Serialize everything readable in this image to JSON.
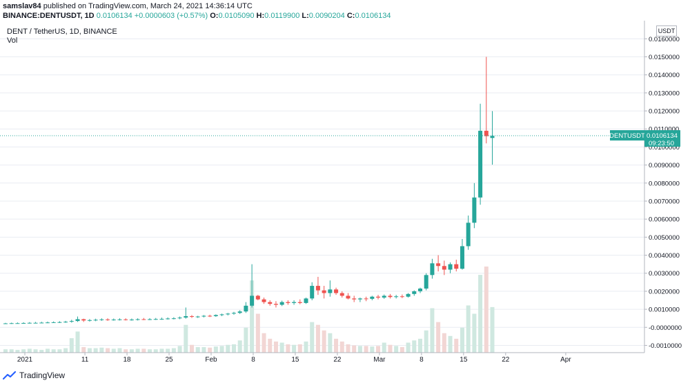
{
  "header": {
    "user": "samslav84",
    "published": " published on TradingView.com, March 24, 2021 14:36:14 UTC",
    "symbol": "BINANCE:DENTUSDT, 1D",
    "last": "0.0106134",
    "change": "+0.0000603 (+0.57%)",
    "o_label": "O:",
    "o_value": "0.0105090",
    "h_label": "H:",
    "h_value": "0.0119900",
    "l_label": "L:",
    "l_value": "0.0090204",
    "c_label": "C:",
    "c_value": "0.0106134"
  },
  "pane": {
    "title": "DENT / TetherUS, 1D, BINANCE",
    "vol_label": "Vol",
    "unit": "USDT",
    "price_tag": "DENTUSDT",
    "price_tag_value": "0.0106134",
    "countdown": "09:23:50"
  },
  "brand": {
    "name": "TradingView"
  },
  "colors": {
    "up": "#26a69a",
    "down": "#ef5350",
    "vol_up": "#cfe8e0",
    "vol_down": "#f2d6d4",
    "grid": "#e9ecf2"
  },
  "chart_data": {
    "type": "candlestick",
    "title": "DENT / TetherUS, 1D, BINANCE",
    "ylabel": "USDT",
    "y_ticks": [
      "0.0160000",
      "0.0150000",
      "0.0140000",
      "0.0130000",
      "0.0120000",
      "0.0110000",
      "0.0100000",
      "0.0090000",
      "0.0080000",
      "0.0070000",
      "0.0060000",
      "0.0050000",
      "0.0040000",
      "0.0030000",
      "0.0020000",
      "0.0010000",
      "-0.0000000",
      "-0.0010000"
    ],
    "x_ticks": [
      "2021",
      "11",
      "18",
      "25",
      "Feb",
      "8",
      "15",
      "22",
      "Mar",
      "8",
      "15",
      "22",
      "Apr"
    ],
    "ylim": [
      -0.00125,
      0.0167
    ],
    "candles": [
      {
        "o": 0.00021,
        "h": 0.00025,
        "l": 0.00018,
        "c": 0.00022,
        "v": 6
      },
      {
        "o": 0.00022,
        "h": 0.00026,
        "l": 0.00019,
        "c": 0.00023,
        "v": 6
      },
      {
        "o": 0.00023,
        "h": 0.00027,
        "l": 0.0002,
        "c": 0.00023,
        "v": 5
      },
      {
        "o": 0.00023,
        "h": 0.00028,
        "l": 0.0002,
        "c": 0.00024,
        "v": 6
      },
      {
        "o": 0.00024,
        "h": 0.00029,
        "l": 0.00021,
        "c": 0.00025,
        "v": 7
      },
      {
        "o": 0.00025,
        "h": 0.0003,
        "l": 0.00022,
        "c": 0.00025,
        "v": 6
      },
      {
        "o": 0.00025,
        "h": 0.00031,
        "l": 0.00022,
        "c": 0.00026,
        "v": 5
      },
      {
        "o": 0.00026,
        "h": 0.00032,
        "l": 0.00023,
        "c": 0.00027,
        "v": 7
      },
      {
        "o": 0.00027,
        "h": 0.00033,
        "l": 0.00024,
        "c": 0.00028,
        "v": 6
      },
      {
        "o": 0.00028,
        "h": 0.00034,
        "l": 0.00024,
        "c": 0.00029,
        "v": 6
      },
      {
        "o": 0.00029,
        "h": 0.00036,
        "l": 0.00025,
        "c": 0.00031,
        "v": 8
      },
      {
        "o": 0.00031,
        "h": 0.00042,
        "l": 0.00026,
        "c": 0.00035,
        "v": 26
      },
      {
        "o": 0.00035,
        "h": 0.0006,
        "l": 0.0003,
        "c": 0.00045,
        "v": 38
      },
      {
        "o": 0.00045,
        "h": 0.00048,
        "l": 0.0003,
        "c": 0.00038,
        "v": 10
      },
      {
        "o": 0.00038,
        "h": 0.00046,
        "l": 0.00032,
        "c": 0.0004,
        "v": 8
      },
      {
        "o": 0.0004,
        "h": 0.00048,
        "l": 0.00034,
        "c": 0.00042,
        "v": 8
      },
      {
        "o": 0.00042,
        "h": 0.0005,
        "l": 0.00036,
        "c": 0.00044,
        "v": 9
      },
      {
        "o": 0.00044,
        "h": 0.0005,
        "l": 0.00036,
        "c": 0.00041,
        "v": 8
      },
      {
        "o": 0.00041,
        "h": 0.00049,
        "l": 0.00037,
        "c": 0.00043,
        "v": 7
      },
      {
        "o": 0.00043,
        "h": 0.0005,
        "l": 0.00038,
        "c": 0.00044,
        "v": 8
      },
      {
        "o": 0.00044,
        "h": 0.0005,
        "l": 0.00038,
        "c": 0.00042,
        "v": 6
      },
      {
        "o": 0.00042,
        "h": 0.00049,
        "l": 0.00037,
        "c": 0.00043,
        "v": 6
      },
      {
        "o": 0.00043,
        "h": 0.0005,
        "l": 0.00038,
        "c": 0.00045,
        "v": 7
      },
      {
        "o": 0.00045,
        "h": 0.00052,
        "l": 0.0004,
        "c": 0.00044,
        "v": 7
      },
      {
        "o": 0.00044,
        "h": 0.00051,
        "l": 0.0004,
        "c": 0.00045,
        "v": 6
      },
      {
        "o": 0.00045,
        "h": 0.00052,
        "l": 0.00041,
        "c": 0.00046,
        "v": 6
      },
      {
        "o": 0.00046,
        "h": 0.00054,
        "l": 0.00042,
        "c": 0.00047,
        "v": 7
      },
      {
        "o": 0.00047,
        "h": 0.00055,
        "l": 0.00043,
        "c": 0.00049,
        "v": 7
      },
      {
        "o": 0.00049,
        "h": 0.00056,
        "l": 0.00044,
        "c": 0.0005,
        "v": 8
      },
      {
        "o": 0.0005,
        "h": 0.0006,
        "l": 0.00045,
        "c": 0.00054,
        "v": 12
      },
      {
        "o": 0.00054,
        "h": 0.0011,
        "l": 0.00048,
        "c": 0.00062,
        "v": 50
      },
      {
        "o": 0.00062,
        "h": 0.00068,
        "l": 0.00052,
        "c": 0.00058,
        "v": 14
      },
      {
        "o": 0.00058,
        "h": 0.00064,
        "l": 0.00052,
        "c": 0.0006,
        "v": 10
      },
      {
        "o": 0.0006,
        "h": 0.00068,
        "l": 0.00055,
        "c": 0.00064,
        "v": 10
      },
      {
        "o": 0.00064,
        "h": 0.0007,
        "l": 0.00057,
        "c": 0.00062,
        "v": 9
      },
      {
        "o": 0.00062,
        "h": 0.00072,
        "l": 0.00058,
        "c": 0.00068,
        "v": 11
      },
      {
        "o": 0.00068,
        "h": 0.00076,
        "l": 0.00062,
        "c": 0.00072,
        "v": 12
      },
      {
        "o": 0.00072,
        "h": 0.0008,
        "l": 0.00066,
        "c": 0.00076,
        "v": 14
      },
      {
        "o": 0.00076,
        "h": 0.00086,
        "l": 0.0007,
        "c": 0.0008,
        "v": 15
      },
      {
        "o": 0.0008,
        "h": 0.00095,
        "l": 0.00074,
        "c": 0.00088,
        "v": 22
      },
      {
        "o": 0.00088,
        "h": 0.0014,
        "l": 0.0008,
        "c": 0.0012,
        "v": 45
      },
      {
        "o": 0.0012,
        "h": 0.0035,
        "l": 0.0011,
        "c": 0.00175,
        "v": 130
      },
      {
        "o": 0.00175,
        "h": 0.0018,
        "l": 0.0015,
        "c": 0.00155,
        "v": 70
      },
      {
        "o": 0.00155,
        "h": 0.00165,
        "l": 0.0013,
        "c": 0.0014,
        "v": 35
      },
      {
        "o": 0.0014,
        "h": 0.0015,
        "l": 0.0012,
        "c": 0.0013,
        "v": 25
      },
      {
        "o": 0.0013,
        "h": 0.00145,
        "l": 0.0011,
        "c": 0.00125,
        "v": 20
      },
      {
        "o": 0.00125,
        "h": 0.00148,
        "l": 0.00118,
        "c": 0.0014,
        "v": 18
      },
      {
        "o": 0.0014,
        "h": 0.0015,
        "l": 0.00125,
        "c": 0.00135,
        "v": 15
      },
      {
        "o": 0.00135,
        "h": 0.0015,
        "l": 0.00125,
        "c": 0.0014,
        "v": 14
      },
      {
        "o": 0.0014,
        "h": 0.00155,
        "l": 0.00128,
        "c": 0.00135,
        "v": 15
      },
      {
        "o": 0.00135,
        "h": 0.00165,
        "l": 0.0013,
        "c": 0.0016,
        "v": 20
      },
      {
        "o": 0.0016,
        "h": 0.0025,
        "l": 0.0015,
        "c": 0.0023,
        "v": 55
      },
      {
        "o": 0.0023,
        "h": 0.0028,
        "l": 0.0018,
        "c": 0.00205,
        "v": 50
      },
      {
        "o": 0.00205,
        "h": 0.0023,
        "l": 0.0016,
        "c": 0.0019,
        "v": 40
      },
      {
        "o": 0.0019,
        "h": 0.0026,
        "l": 0.0017,
        "c": 0.0021,
        "v": 35
      },
      {
        "o": 0.0021,
        "h": 0.0022,
        "l": 0.0018,
        "c": 0.0019,
        "v": 25
      },
      {
        "o": 0.0019,
        "h": 0.002,
        "l": 0.00165,
        "c": 0.00175,
        "v": 20
      },
      {
        "o": 0.00175,
        "h": 0.0019,
        "l": 0.00155,
        "c": 0.0016,
        "v": 15
      },
      {
        "o": 0.0016,
        "h": 0.00175,
        "l": 0.0014,
        "c": 0.00155,
        "v": 13
      },
      {
        "o": 0.00155,
        "h": 0.00165,
        "l": 0.0014,
        "c": 0.0016,
        "v": 12
      },
      {
        "o": 0.0016,
        "h": 0.0017,
        "l": 0.00145,
        "c": 0.00158,
        "v": 12
      },
      {
        "o": 0.00158,
        "h": 0.00175,
        "l": 0.0015,
        "c": 0.0017,
        "v": 11
      },
      {
        "o": 0.0017,
        "h": 0.0018,
        "l": 0.00155,
        "c": 0.00165,
        "v": 12
      },
      {
        "o": 0.00165,
        "h": 0.00182,
        "l": 0.00158,
        "c": 0.00175,
        "v": 18
      },
      {
        "o": 0.00175,
        "h": 0.00185,
        "l": 0.0016,
        "c": 0.00168,
        "v": 14
      },
      {
        "o": 0.00168,
        "h": 0.0018,
        "l": 0.0016,
        "c": 0.00172,
        "v": 12
      },
      {
        "o": 0.00172,
        "h": 0.00182,
        "l": 0.00162,
        "c": 0.0017,
        "v": 10
      },
      {
        "o": 0.0017,
        "h": 0.0019,
        "l": 0.00165,
        "c": 0.00185,
        "v": 18
      },
      {
        "o": 0.00185,
        "h": 0.00205,
        "l": 0.00175,
        "c": 0.002,
        "v": 22
      },
      {
        "o": 0.002,
        "h": 0.0022,
        "l": 0.0019,
        "c": 0.00215,
        "v": 25
      },
      {
        "o": 0.00215,
        "h": 0.003,
        "l": 0.00205,
        "c": 0.0029,
        "v": 40
      },
      {
        "o": 0.0029,
        "h": 0.0038,
        "l": 0.0027,
        "c": 0.00355,
        "v": 80
      },
      {
        "o": 0.00355,
        "h": 0.004,
        "l": 0.0031,
        "c": 0.0034,
        "v": 55
      },
      {
        "o": 0.0034,
        "h": 0.0037,
        "l": 0.0029,
        "c": 0.0032,
        "v": 35
      },
      {
        "o": 0.0032,
        "h": 0.0036,
        "l": 0.003,
        "c": 0.0035,
        "v": 30
      },
      {
        "o": 0.0035,
        "h": 0.00375,
        "l": 0.0031,
        "c": 0.00325,
        "v": 25
      },
      {
        "o": 0.00325,
        "h": 0.0049,
        "l": 0.0032,
        "c": 0.0045,
        "v": 45
      },
      {
        "o": 0.0045,
        "h": 0.0062,
        "l": 0.0043,
        "c": 0.0058,
        "v": 85
      },
      {
        "o": 0.0058,
        "h": 0.008,
        "l": 0.0055,
        "c": 0.0072,
        "v": 70
      },
      {
        "o": 0.0072,
        "h": 0.0124,
        "l": 0.0068,
        "c": 0.0109,
        "v": 140
      },
      {
        "o": 0.0109,
        "h": 0.015,
        "l": 0.0102,
        "c": 0.0106,
        "v": 155
      },
      {
        "o": 0.0105,
        "h": 0.01199,
        "l": 0.00902,
        "c": 0.01061,
        "v": 82
      }
    ]
  }
}
